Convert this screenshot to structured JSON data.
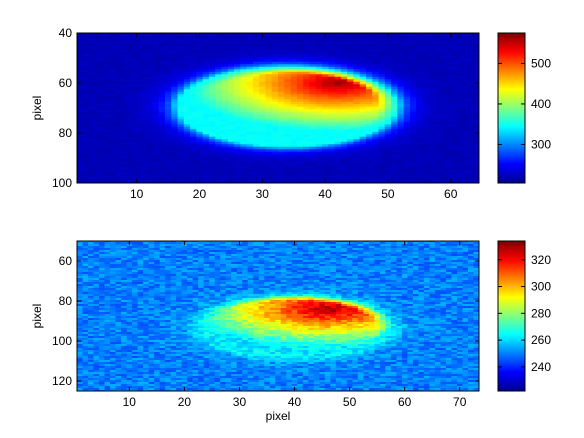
{
  "chart_data": [
    {
      "type": "heatmap",
      "title": "",
      "xlabel": "",
      "ylabel": "pixel",
      "xlim": [
        0.5,
        64.5
      ],
      "ylim": [
        40,
        100
      ],
      "y_reversed": true,
      "xticks": [
        10,
        20,
        30,
        40,
        50,
        60
      ],
      "yticks": [
        40,
        60,
        80,
        100
      ],
      "colormap": "jet",
      "clim": [
        205,
        575
      ],
      "colorbar_ticks": [
        300,
        400,
        500
      ],
      "background_level": 225,
      "blob": {
        "center_x": 34,
        "center_y": 69.5,
        "radius_x": 17.5,
        "radius_y": 16,
        "edge_level": 345,
        "peak_level": 565,
        "peak_location": [
          42,
          60
        ],
        "description_levels": {
          "left_edge": 370,
          "upper_right": 565,
          "lower_center": 450
        }
      },
      "grid": false
    },
    {
      "type": "heatmap",
      "title": "",
      "xlabel": "pixel",
      "ylabel": "pixel",
      "xlim": [
        0.5,
        73.5
      ],
      "ylim": [
        50,
        125
      ],
      "y_reversed": true,
      "xticks": [
        10,
        20,
        30,
        40,
        50,
        60,
        70
      ],
      "yticks": [
        60,
        80,
        100,
        120
      ],
      "colormap": "jet",
      "clim": [
        222,
        334
      ],
      "colorbar_ticks": [
        240,
        260,
        280,
        300,
        320
      ],
      "background_level": 250,
      "blob": {
        "center_x": 40,
        "center_y": 93,
        "radius_x": 18,
        "radius_y": 16,
        "edge_level": 262,
        "peak_level": 330,
        "peak_location": [
          46,
          84
        ],
        "description_levels": {
          "left_edge": 268,
          "upper_right": 330,
          "lower_center": 285
        }
      },
      "grid": false
    }
  ]
}
